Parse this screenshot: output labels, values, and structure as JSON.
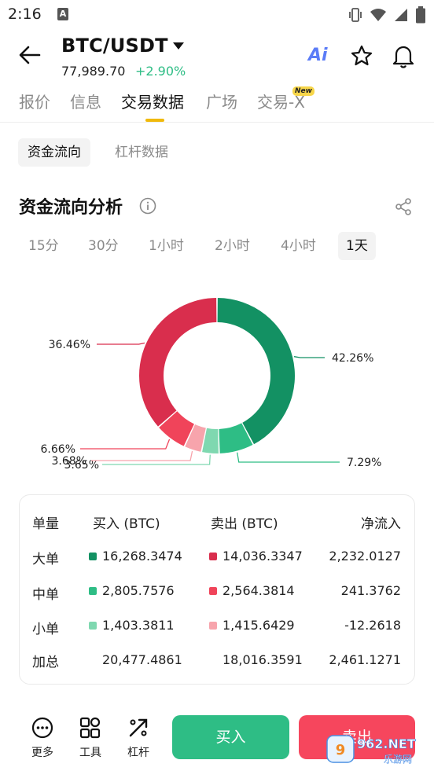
{
  "status_bar": {
    "time": "2:16",
    "notification_glyph": "A"
  },
  "header": {
    "pair": "BTC/USDT",
    "price": "77,989.70",
    "change": "+2.90%",
    "ai_label": "Ai"
  },
  "tabs": [
    {
      "label": "报价"
    },
    {
      "label": "信息"
    },
    {
      "label": "交易数据"
    },
    {
      "label": "广场"
    },
    {
      "label": "交易-X"
    }
  ],
  "new_badge": "New",
  "subtabs": [
    {
      "label": "资金流向"
    },
    {
      "label": "杠杆数据"
    }
  ],
  "section": {
    "title": "资金流向分析"
  },
  "periods": [
    {
      "label": "15分"
    },
    {
      "label": "30分"
    },
    {
      "label": "1小时"
    },
    {
      "label": "2小时"
    },
    {
      "label": "4小时"
    },
    {
      "label": "1天"
    }
  ],
  "chart_data": {
    "type": "pie",
    "donut": true,
    "slices": [
      {
        "label": "42.26%",
        "value": 42.26,
        "color": "#139163"
      },
      {
        "label": "7.29%",
        "value": 7.29,
        "color": "#2ebd85"
      },
      {
        "label": "3.65%",
        "value": 3.65,
        "color": "#7fd8b0"
      },
      {
        "label": "3.68%",
        "value": 3.68,
        "color": "#f7a4ac"
      },
      {
        "label": "6.66%",
        "value": 6.66,
        "color": "#f0445a"
      },
      {
        "label": "36.46%",
        "value": 36.46,
        "color": "#d92e4d"
      }
    ]
  },
  "table": {
    "headers": {
      "size": "单量",
      "buy": "买入 (BTC)",
      "sell": "卖出 (BTC)",
      "net": "净流入"
    },
    "rows": [
      {
        "label": "大单",
        "buy": "16,268.3474",
        "sell": "14,036.3347",
        "net": "2,232.0127",
        "buy_color": "#139163",
        "sell_color": "#d92e4d"
      },
      {
        "label": "中单",
        "buy": "2,805.7576",
        "sell": "2,564.3814",
        "net": "241.3762",
        "buy_color": "#2ebd85",
        "sell_color": "#f0445a"
      },
      {
        "label": "小单",
        "buy": "1,403.3811",
        "sell": "1,415.6429",
        "net": "-12.2618",
        "buy_color": "#7fd8b0",
        "sell_color": "#f7a4ac"
      }
    ],
    "total": {
      "label": "加总",
      "buy": "20,477.4861",
      "sell": "18,016.3591",
      "net": "2,461.1271"
    }
  },
  "bottom": {
    "more": "更多",
    "tools": "工具",
    "leverage": "杠杆",
    "buy": "买入",
    "sell": "卖出"
  },
  "watermark": {
    "brand": "962.NET",
    "sub": "乐游网"
  },
  "colors": {
    "up": "#2ebd85",
    "down": "#f6465d",
    "accent": "#f0b90b"
  }
}
